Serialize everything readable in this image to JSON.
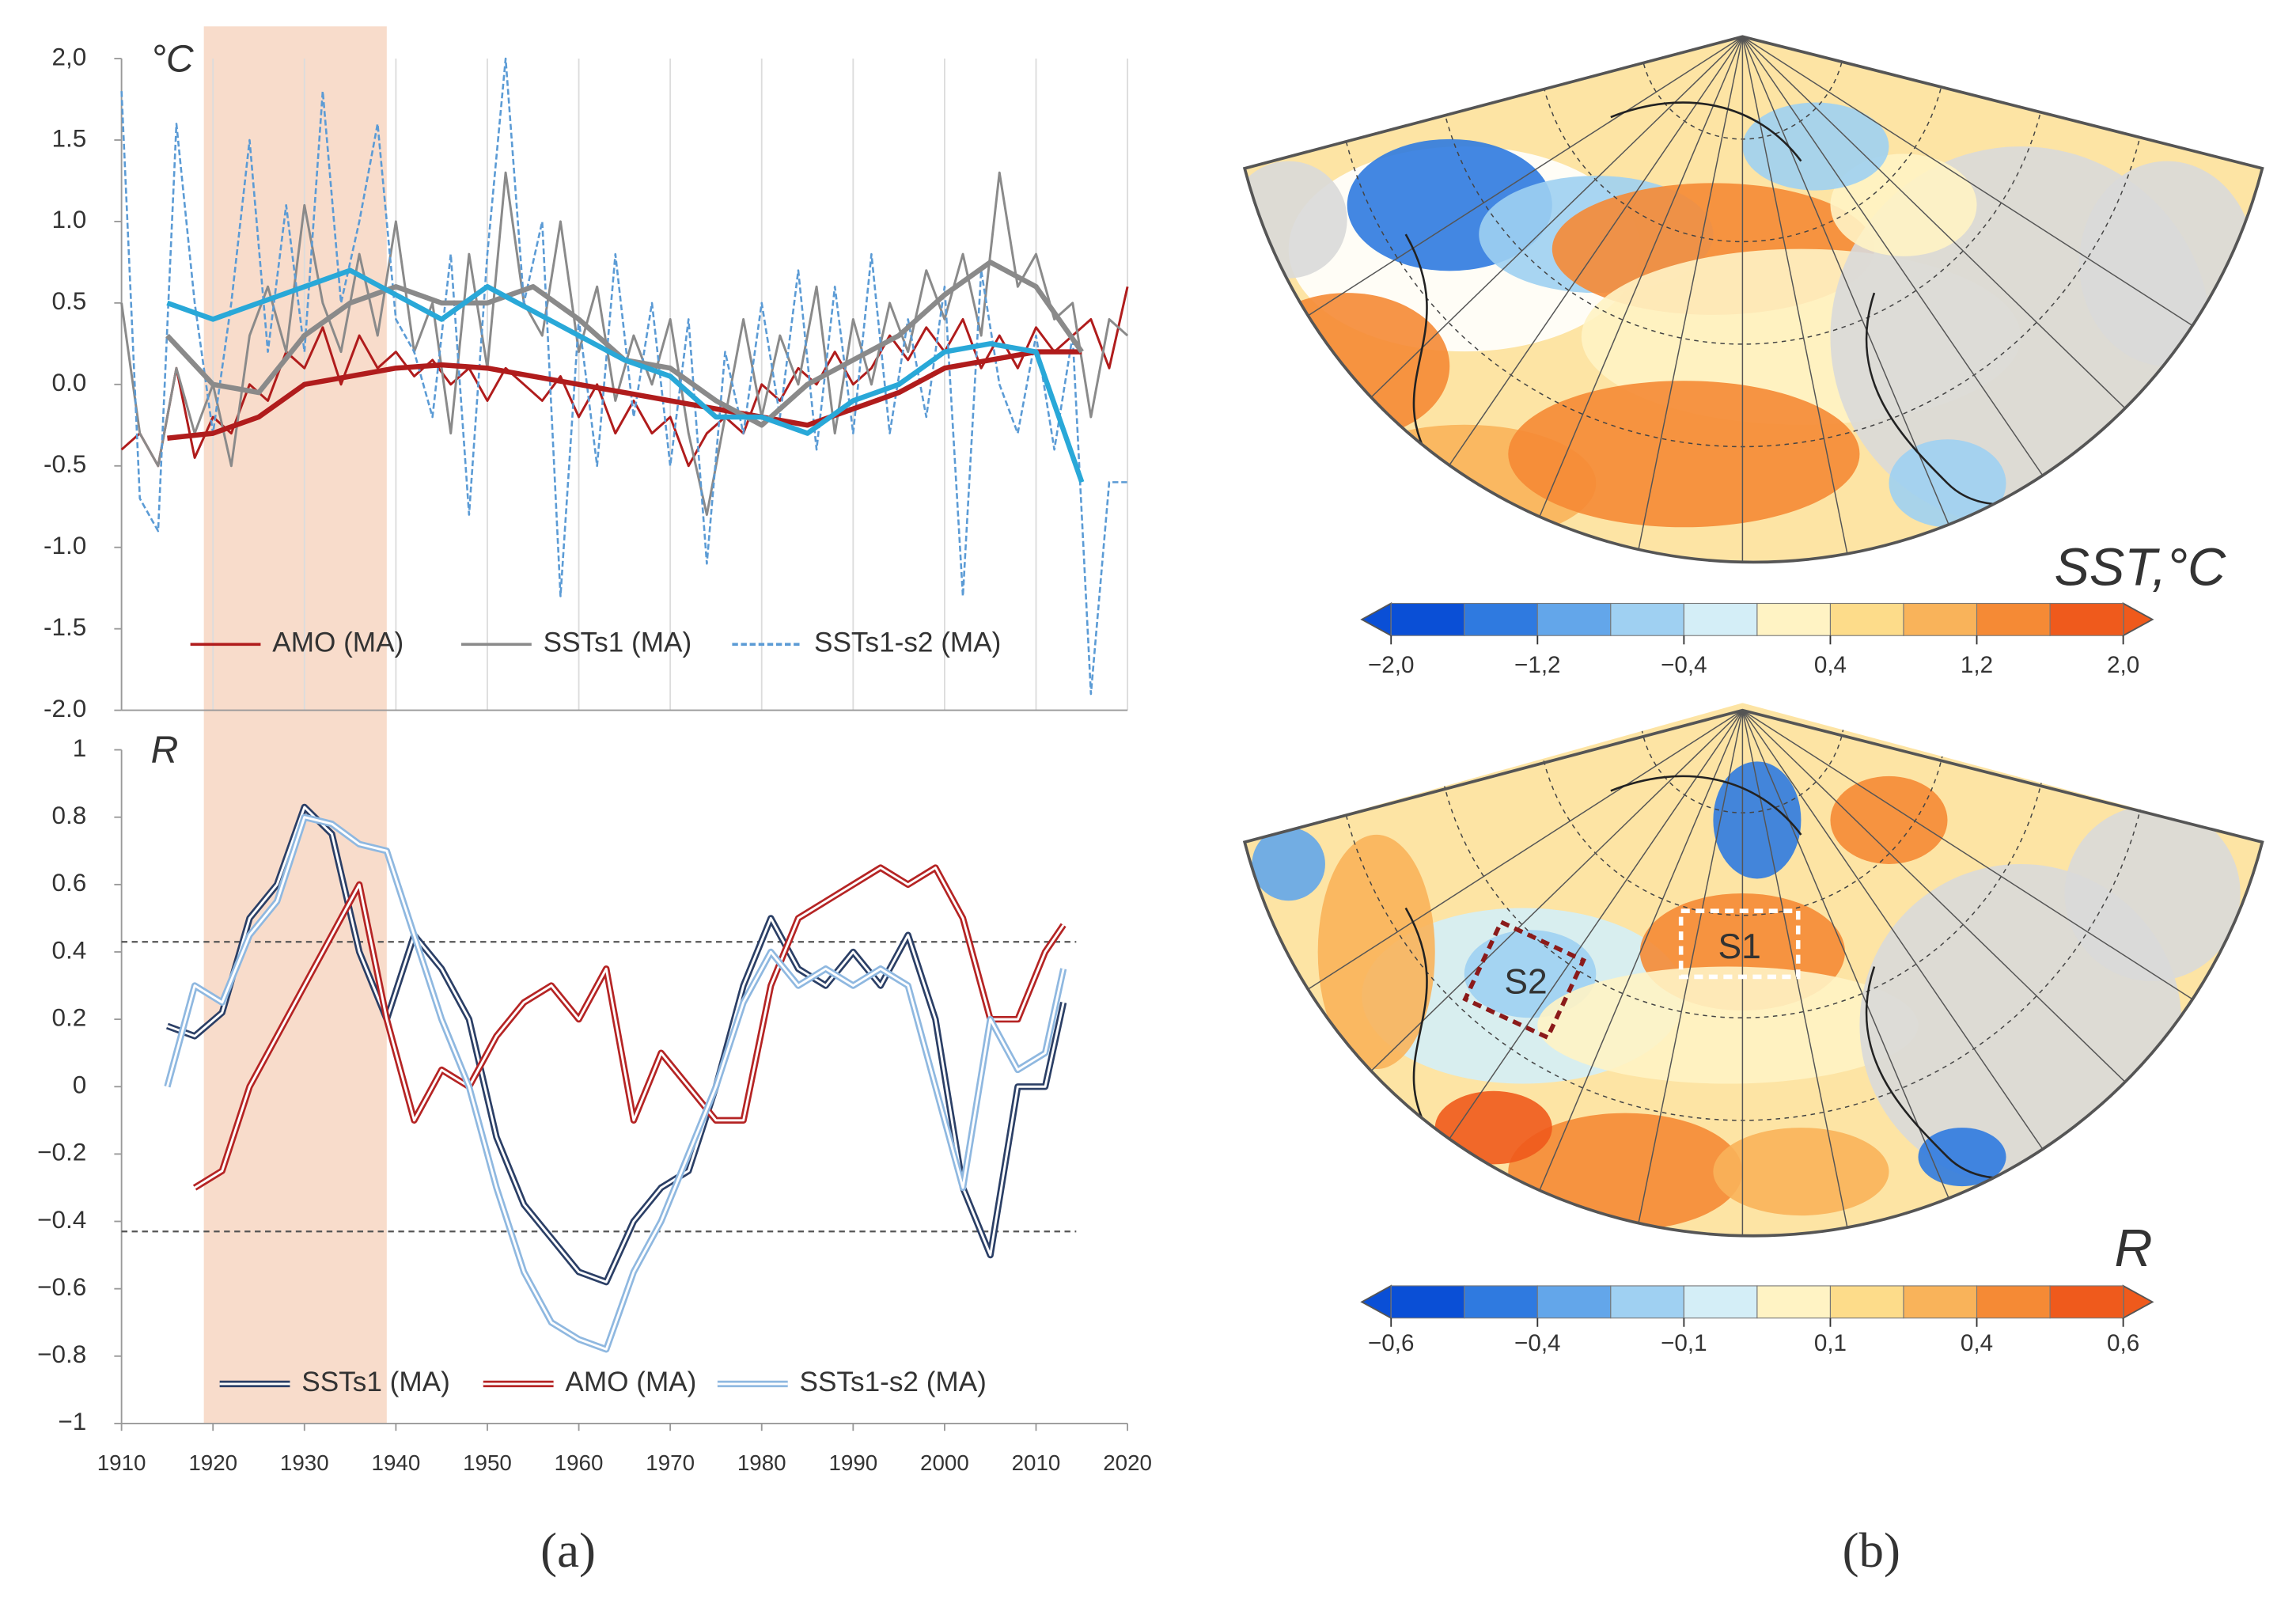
{
  "chart_data": [
    {
      "type": "line",
      "ylabel": "°C",
      "xlim": [
        1910,
        2020
      ],
      "xticks": [
        1910,
        1920,
        1930,
        1940,
        1950,
        1960,
        1970,
        1980,
        1990,
        2000,
        2010,
        2020
      ],
      "xgrid": true,
      "xlabels": false,
      "ylim": [
        -2,
        2
      ],
      "yticks": [
        {
          "value": 2,
          "label": "2,0"
        },
        1.5,
        {
          "value": 1,
          "label": "1.0"
        },
        0.5,
        {
          "value": 0,
          "label": "0.0"
        },
        -0.5,
        {
          "value": -1,
          "label": "-1.0"
        },
        -1.5,
        {
          "value": -2,
          "label": "-2.0"
        }
      ],
      "highlight": [
        1919,
        1939
      ],
      "legend": "bottom",
      "series": [
        {
          "name": "AMO (MA)",
          "color": "#b01c1c",
          "width": 1.6,
          "dash": false,
          "x": [
            1910,
            1912,
            1914,
            1916,
            1918,
            1920,
            1922,
            1924,
            1926,
            1928,
            1930,
            1932,
            1934,
            1936,
            1938,
            1940,
            1942,
            1944,
            1946,
            1948,
            1950,
            1952,
            1954,
            1956,
            1958,
            1960,
            1962,
            1964,
            1966,
            1968,
            1970,
            1972,
            1974,
            1976,
            1978,
            1980,
            1982,
            1984,
            1986,
            1988,
            1990,
            1992,
            1994,
            1996,
            1998,
            2000,
            2002,
            2004,
            2006,
            2008,
            2010,
            2012,
            2014,
            2016,
            2018,
            2020
          ],
          "values": [
            -0.4,
            -0.3,
            -0.5,
            0.1,
            -0.45,
            -0.2,
            -0.3,
            0.0,
            -0.1,
            0.2,
            0.1,
            0.35,
            0.0,
            0.3,
            0.1,
            0.2,
            0.05,
            0.15,
            0.0,
            0.1,
            -0.1,
            0.1,
            0.0,
            -0.1,
            0.05,
            -0.2,
            0.0,
            -0.3,
            -0.1,
            -0.3,
            -0.2,
            -0.5,
            -0.3,
            -0.2,
            -0.3,
            0.0,
            -0.1,
            0.1,
            0.0,
            0.2,
            0.0,
            0.1,
            0.3,
            0.15,
            0.35,
            0.2,
            0.4,
            0.1,
            0.3,
            0.1,
            0.35,
            0.2,
            0.3,
            0.4,
            0.1,
            0.6
          ]
        },
        {
          "name": "SSTs1 (MA)",
          "color": "#8a8a8a",
          "width": 1.6,
          "dash": false,
          "x": [
            1910,
            1912,
            1914,
            1916,
            1918,
            1920,
            1922,
            1924,
            1926,
            1928,
            1930,
            1932,
            1934,
            1936,
            1938,
            1940,
            1942,
            1944,
            1946,
            1948,
            1950,
            1952,
            1954,
            1956,
            1958,
            1960,
            1962,
            1964,
            1966,
            1968,
            1970,
            1972,
            1974,
            1976,
            1978,
            1980,
            1982,
            1984,
            1986,
            1988,
            1990,
            1992,
            1994,
            1996,
            1998,
            2000,
            2002,
            2004,
            2006,
            2008,
            2010,
            2012,
            2014,
            2016,
            2018,
            2020
          ],
          "values": [
            0.5,
            -0.3,
            -0.5,
            0.1,
            -0.3,
            0.0,
            -0.5,
            0.3,
            0.6,
            0.2,
            1.1,
            0.5,
            0.2,
            0.8,
            0.3,
            1.0,
            0.2,
            0.5,
            -0.3,
            0.8,
            0.1,
            1.3,
            0.5,
            0.3,
            1.0,
            0.2,
            0.6,
            -0.1,
            0.3,
            0.0,
            0.4,
            -0.3,
            -0.8,
            -0.2,
            0.4,
            -0.2,
            0.3,
            0.0,
            0.6,
            -0.3,
            0.4,
            0.0,
            0.5,
            0.2,
            0.7,
            0.4,
            0.8,
            0.3,
            1.3,
            0.6,
            0.8,
            0.4,
            0.5,
            -0.2,
            0.4,
            0.3
          ]
        },
        {
          "name": "SSTs1-s2 (MA)",
          "color": "#5b9bd5",
          "width": 1.4,
          "dash": true,
          "x": [
            1910,
            1912,
            1914,
            1916,
            1918,
            1920,
            1922,
            1924,
            1926,
            1928,
            1930,
            1932,
            1934,
            1936,
            1938,
            1940,
            1942,
            1944,
            1946,
            1948,
            1950,
            1952,
            1954,
            1956,
            1958,
            1960,
            1962,
            1964,
            1966,
            1968,
            1970,
            1972,
            1974,
            1976,
            1978,
            1980,
            1982,
            1984,
            1986,
            1988,
            1990,
            1992,
            1994,
            1996,
            1998,
            2000,
            2002,
            2004,
            2006,
            2008,
            2010,
            2012,
            2014,
            2016,
            2018,
            2020
          ],
          "values": [
            1.8,
            -0.7,
            -0.9,
            1.6,
            0.5,
            -0.3,
            0.5,
            1.5,
            0.2,
            1.1,
            0.2,
            1.8,
            0.5,
            1.0,
            1.6,
            0.4,
            0.2,
            -0.2,
            0.8,
            -0.8,
            0.8,
            2.0,
            0.5,
            1.0,
            -1.3,
            0.4,
            -0.5,
            0.8,
            -0.2,
            0.5,
            -0.5,
            0.4,
            -1.1,
            0.2,
            -0.3,
            0.5,
            -0.2,
            0.7,
            -0.4,
            0.6,
            -0.3,
            0.8,
            -0.3,
            0.4,
            -0.2,
            0.6,
            -1.3,
            0.7,
            0.0,
            -0.3,
            0.3,
            -0.4,
            0.3,
            -1.9,
            -0.6,
            -0.6
          ]
        },
        {
          "color": "#b01c1c",
          "width": 3.5,
          "dash": false,
          "x": [
            1915,
            1920,
            1925,
            1930,
            1935,
            1940,
            1945,
            1950,
            1955,
            1960,
            1965,
            1970,
            1975,
            1980,
            1985,
            1990,
            1995,
            2000,
            2005,
            2010,
            2015
          ],
          "values": [
            -0.33,
            -0.3,
            -0.2,
            0.0,
            0.05,
            0.1,
            0.12,
            0.1,
            0.05,
            0.0,
            -0.05,
            -0.1,
            -0.15,
            -0.2,
            -0.25,
            -0.15,
            -0.05,
            0.1,
            0.15,
            0.2,
            0.2
          ]
        },
        {
          "color": "#8a8a8a",
          "width": 3.5,
          "dash": false,
          "x": [
            1915,
            1920,
            1925,
            1930,
            1935,
            1940,
            1945,
            1950,
            1955,
            1960,
            1965,
            1970,
            1975,
            1980,
            1985,
            1990,
            1995,
            2000,
            2005,
            2010,
            2015
          ],
          "values": [
            0.3,
            0.0,
            -0.05,
            0.3,
            0.5,
            0.6,
            0.5,
            0.5,
            0.6,
            0.4,
            0.15,
            0.1,
            -0.1,
            -0.25,
            0.0,
            0.15,
            0.3,
            0.55,
            0.75,
            0.6,
            0.2
          ]
        },
        {
          "color": "#29a8d8",
          "width": 3.5,
          "dash": false,
          "x": [
            1915,
            1920,
            1925,
            1930,
            1935,
            1940,
            1945,
            1950,
            1955,
            1960,
            1965,
            1970,
            1975,
            1980,
            1985,
            1990,
            1995,
            2000,
            2005,
            2010,
            2015
          ],
          "values": [
            0.5,
            0.4,
            0.5,
            0.6,
            0.7,
            0.55,
            0.4,
            0.6,
            0.45,
            0.3,
            0.15,
            0.05,
            -0.2,
            -0.2,
            -0.3,
            -0.1,
            0.0,
            0.2,
            0.25,
            0.2,
            -0.6
          ]
        }
      ]
    },
    {
      "type": "line",
      "ylabel": "R",
      "xlim": [
        1910,
        2020
      ],
      "xticks": [
        1910,
        1920,
        1930,
        1940,
        1950,
        1960,
        1970,
        1980,
        1990,
        2000,
        2010,
        2020
      ],
      "xgrid": false,
      "xlabels": true,
      "ylim": [
        -1,
        1
      ],
      "yticks": [
        1,
        0.8,
        0.6,
        0.4,
        0.2,
        0,
        {
          "value": -0.2,
          "label": "−0.2"
        },
        {
          "value": -0.4,
          "label": "−0.4"
        },
        {
          "value": -0.6,
          "label": "−0.6"
        },
        {
          "value": -0.8,
          "label": "−0.8"
        },
        {
          "value": -1,
          "label": "−1"
        }
      ],
      "ref_lines": [
        0.43,
        -0.43
      ],
      "legend": "bottom",
      "double_lines": true,
      "series": [
        {
          "name": "SSTs1 (MA)",
          "color": "#2b3f66",
          "width": 4.5,
          "dash": false,
          "x": [
            1915,
            1918,
            1921,
            1924,
            1927,
            1930,
            1933,
            1936,
            1939,
            1942,
            1945,
            1948,
            1951,
            1954,
            1957,
            1960,
            1963,
            1966,
            1969,
            1972,
            1975,
            1978,
            1981,
            1984,
            1987,
            1990,
            1993,
            1996,
            1999,
            2002,
            2005,
            2008,
            2011,
            2013
          ],
          "values": [
            0.18,
            0.15,
            0.22,
            0.5,
            0.6,
            0.83,
            0.75,
            0.4,
            0.2,
            0.45,
            0.35,
            0.2,
            -0.15,
            -0.35,
            -0.45,
            -0.55,
            -0.58,
            -0.4,
            -0.3,
            -0.25,
            0.0,
            0.3,
            0.5,
            0.35,
            0.3,
            0.4,
            0.3,
            0.45,
            0.2,
            -0.3,
            -0.5,
            0.0,
            0.0,
            0.25
          ]
        },
        {
          "name": "AMO (MA)",
          "color": "#b52424",
          "width": 4.5,
          "dash": false,
          "x": [
            1915,
            1918,
            1921,
            1924,
            1927,
            1930,
            1933,
            1936,
            1939,
            1942,
            1945,
            1948,
            1951,
            1954,
            1957,
            1960,
            1963,
            1966,
            1969,
            1972,
            1975,
            1978,
            1981,
            1984,
            1987,
            1990,
            1993,
            1996,
            1999,
            2002,
            2005,
            2008,
            2011,
            2013
          ],
          "values": [
            null,
            -0.3,
            -0.25,
            0.0,
            0.15,
            0.3,
            0.45,
            0.6,
            0.2,
            -0.1,
            0.05,
            0.0,
            0.15,
            0.25,
            0.3,
            0.2,
            0.35,
            -0.1,
            0.1,
            0.0,
            -0.1,
            -0.1,
            0.3,
            0.5,
            0.55,
            0.6,
            0.65,
            0.6,
            0.65,
            0.5,
            0.2,
            0.2,
            0.4,
            0.48
          ]
        },
        {
          "name": "SSTs1-s2 (MA)",
          "color": "#8fb8e0",
          "width": 4.5,
          "dash": false,
          "x": [
            1915,
            1918,
            1921,
            1924,
            1927,
            1930,
            1933,
            1936,
            1939,
            1942,
            1945,
            1948,
            1951,
            1954,
            1957,
            1960,
            1963,
            1966,
            1969,
            1972,
            1975,
            1978,
            1981,
            1984,
            1987,
            1990,
            1993,
            1996,
            1999,
            2002,
            2005,
            2008,
            2011,
            2013
          ],
          "values": [
            0.0,
            0.3,
            0.25,
            0.45,
            0.55,
            0.8,
            0.78,
            0.72,
            0.7,
            0.45,
            0.2,
            0.0,
            -0.3,
            -0.55,
            -0.7,
            -0.75,
            -0.78,
            -0.55,
            -0.4,
            -0.2,
            0.0,
            0.25,
            0.4,
            0.3,
            0.35,
            0.3,
            0.35,
            0.3,
            0.0,
            -0.3,
            0.2,
            0.05,
            0.1,
            0.35
          ]
        }
      ]
    }
  ],
  "panel_a": "(a)",
  "panel_b": "(b)",
  "maps": [
    {
      "colorbar_title": "SST,°C",
      "ticks": [
        "−2,0",
        "−1,2",
        "−0,4",
        "0,4",
        "1,2",
        "2,0"
      ],
      "colors": [
        "#0a4fd6",
        "#2f7ae0",
        "#63a6ea",
        "#9fd0f2",
        "#d4eef7",
        "#fff3c4",
        "#fddc8a",
        "#f9b35a",
        "#f58a35",
        "#ef5a1c"
      ]
    },
    {
      "colorbar_title": "R",
      "ticks": [
        "−0,6",
        "−0,4",
        "−0,1",
        "0,1",
        "0,4",
        "0,6"
      ],
      "regions": [
        "S1",
        "S2"
      ],
      "colors": [
        "#0a4fd6",
        "#2f7ae0",
        "#63a6ea",
        "#9fd0f2",
        "#d4eef7",
        "#fff3c4",
        "#fddc8a",
        "#f9b35a",
        "#f58a35",
        "#ef5a1c"
      ]
    }
  ]
}
